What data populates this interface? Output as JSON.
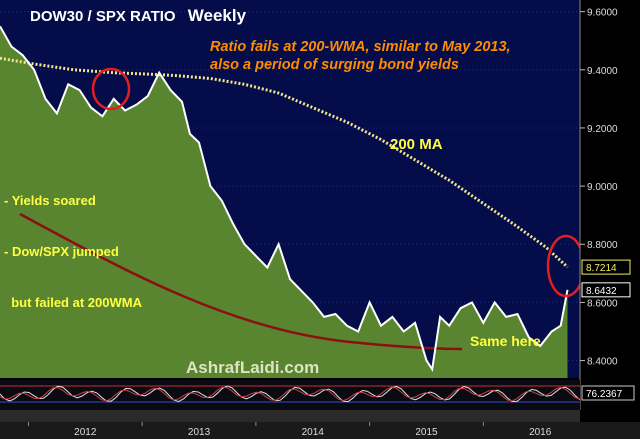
{
  "chart_data": {
    "type": "line",
    "title": "DOW30 / SPX  RATIO",
    "subtitle": "Weekly",
    "watermark": "AshrafLaidi.com",
    "x_ticks": [
      "2012",
      "2013",
      "2014",
      "2015",
      "2016"
    ],
    "y_ticks": [
      "9.6000",
      "9.4000",
      "9.2000",
      "9.0000",
      "8.8000",
      "8.6000",
      "8.4000"
    ],
    "y_tick_values": [
      9.6,
      9.4,
      9.2,
      9.0,
      8.8,
      8.6,
      8.4
    ],
    "ylim": [
      8.34,
      9.64
    ],
    "x_range": [
      2011.75,
      2016.85
    ],
    "last_value_labels": [
      {
        "text": "8.7214",
        "value": 8.7214,
        "color": "#f0f060"
      },
      {
        "text": "8.6432",
        "value": 8.6432,
        "color": "#ffffff"
      }
    ],
    "indicator_label": "76.2367",
    "annotations": {
      "headline_line1": "Ratio fails at 200-WMA, similar to May 2013,",
      "headline_line2": "also a period of surging bond yields",
      "ma_label": "200 MA",
      "bullet1": "- Yields soared",
      "bullet2": "- Dow/SPX jumped",
      "bullet3": "  but failed at 200WMA",
      "same_here": "Same here"
    },
    "series": [
      {
        "name": "DOW30 / SPX",
        "color": "#ffffff",
        "area_color": "#5e8c2e",
        "x": [
          2011.75,
          2011.85,
          2011.95,
          2012.05,
          2012.15,
          2012.25,
          2012.35,
          2012.45,
          2012.55,
          2012.65,
          2012.75,
          2012.85,
          2012.95,
          2013.05,
          2013.15,
          2013.25,
          2013.35,
          2013.42,
          2013.5,
          2013.6,
          2013.7,
          2013.8,
          2013.9,
          2014.0,
          2014.1,
          2014.2,
          2014.3,
          2014.4,
          2014.5,
          2014.6,
          2014.7,
          2014.8,
          2014.9,
          2015.0,
          2015.1,
          2015.2,
          2015.3,
          2015.4,
          2015.5,
          2015.55,
          2015.62,
          2015.7,
          2015.8,
          2015.9,
          2016.0,
          2016.1,
          2016.2,
          2016.3,
          2016.4,
          2016.5,
          2016.6,
          2016.68,
          2016.74
        ],
        "values": [
          9.55,
          9.48,
          9.45,
          9.4,
          9.3,
          9.25,
          9.35,
          9.33,
          9.27,
          9.24,
          9.3,
          9.26,
          9.28,
          9.31,
          9.39,
          9.33,
          9.29,
          9.18,
          9.15,
          9.0,
          8.95,
          8.87,
          8.8,
          8.76,
          8.72,
          8.8,
          8.68,
          8.64,
          8.6,
          8.55,
          8.56,
          8.52,
          8.5,
          8.6,
          8.52,
          8.55,
          8.5,
          8.53,
          8.4,
          8.37,
          8.55,
          8.52,
          8.58,
          8.6,
          8.53,
          8.6,
          8.55,
          8.56,
          8.48,
          8.45,
          8.5,
          8.52,
          8.6432
        ]
      },
      {
        "name": "200 MA",
        "color": "#f0e68c",
        "x": [
          2011.75,
          2012.05,
          2012.4,
          2012.75,
          2013.05,
          2013.3,
          2013.6,
          2013.9,
          2014.2,
          2014.5,
          2014.8,
          2015.1,
          2015.4,
          2015.7,
          2016.0,
          2016.3,
          2016.55,
          2016.74
        ],
        "values": [
          9.44,
          9.42,
          9.4,
          9.39,
          9.385,
          9.38,
          9.37,
          9.35,
          9.32,
          9.27,
          9.22,
          9.16,
          9.09,
          9.02,
          8.94,
          8.86,
          8.79,
          8.7214
        ]
      }
    ]
  }
}
